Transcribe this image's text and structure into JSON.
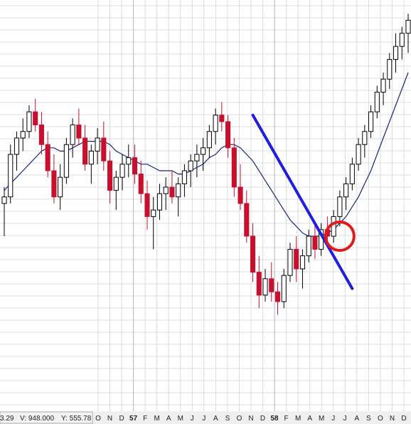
{
  "readout": {
    "date_fragment": "3.29",
    "volume": "V: 948.000",
    "price": "Y: 555.78"
  },
  "colors": {
    "up_candle": "#000000",
    "down_candle": "#c8102e",
    "moving_average": "#1a237e",
    "trendline": "#1f1fdc",
    "circle": "#e01a1a",
    "grid": "#dcdcdc",
    "axis_bg": "#efefef"
  },
  "chart_data": {
    "type": "candlestick",
    "title": "",
    "xlabel": "",
    "ylabel": "",
    "grid": true,
    "x_labels": [
      "O",
      "N",
      "D",
      "57",
      "F",
      "M",
      "A",
      "M",
      "J",
      "J",
      "A",
      "S",
      "O",
      "N",
      "D",
      "58",
      "F",
      "M",
      "A",
      "M",
      "J",
      "J",
      "A",
      "S",
      "O",
      "N",
      "D"
    ],
    "year_labels": [
      "57",
      "58"
    ],
    "ylim": [
      0,
      100
    ],
    "series": [
      {
        "kind": "candles",
        "values": [
          [
            40,
            45,
            30,
            42
          ],
          [
            42,
            58,
            40,
            55
          ],
          [
            55,
            62,
            50,
            60
          ],
          [
            60,
            66,
            56,
            62
          ],
          [
            62,
            70,
            60,
            68
          ],
          [
            68,
            72,
            62,
            64
          ],
          [
            64,
            68,
            55,
            58
          ],
          [
            58,
            62,
            48,
            50
          ],
          [
            50,
            55,
            40,
            42
          ],
          [
            42,
            52,
            38,
            48
          ],
          [
            48,
            60,
            46,
            58
          ],
          [
            58,
            66,
            54,
            64
          ],
          [
            64,
            69,
            58,
            60
          ],
          [
            60,
            64,
            50,
            52
          ],
          [
            52,
            58,
            46,
            56
          ],
          [
            56,
            63,
            52,
            60
          ],
          [
            60,
            65,
            50,
            53
          ],
          [
            53,
            56,
            40,
            44
          ],
          [
            44,
            50,
            38,
            48
          ],
          [
            48,
            55,
            44,
            52
          ],
          [
            52,
            58,
            48,
            54
          ],
          [
            54,
            58,
            46,
            49
          ],
          [
            49,
            53,
            40,
            43
          ],
          [
            43,
            47,
            32,
            36
          ],
          [
            36,
            42,
            26,
            38
          ],
          [
            38,
            46,
            35,
            43
          ],
          [
            43,
            48,
            38,
            45
          ],
          [
            45,
            50,
            40,
            42
          ],
          [
            42,
            48,
            36,
            46
          ],
          [
            46,
            52,
            42,
            50
          ],
          [
            50,
            55,
            45,
            53
          ],
          [
            53,
            58,
            48,
            55
          ],
          [
            55,
            60,
            50,
            57
          ],
          [
            57,
            64,
            54,
            62
          ],
          [
            62,
            69,
            58,
            67
          ],
          [
            67,
            71,
            62,
            65
          ],
          [
            65,
            67,
            54,
            57
          ],
          [
            57,
            60,
            42,
            45
          ],
          [
            45,
            52,
            38,
            40
          ],
          [
            40,
            44,
            28,
            30
          ],
          [
            30,
            34,
            16,
            19
          ],
          [
            19,
            24,
            8,
            12
          ],
          [
            12,
            20,
            10,
            17
          ],
          [
            17,
            22,
            10,
            13
          ],
          [
            13,
            16,
            6,
            10
          ],
          [
            10,
            20,
            8,
            18
          ],
          [
            18,
            28,
            16,
            26
          ],
          [
            26,
            30,
            16,
            20
          ],
          [
            20,
            26,
            14,
            24
          ],
          [
            24,
            32,
            22,
            30
          ],
          [
            30,
            34,
            23,
            26
          ],
          [
            26,
            34,
            24,
            32
          ],
          [
            32,
            36,
            27,
            30
          ],
          [
            30,
            38,
            28,
            36
          ],
          [
            36,
            44,
            33,
            42
          ],
          [
            42,
            48,
            38,
            46
          ],
          [
            46,
            54,
            44,
            52
          ],
          [
            52,
            60,
            50,
            58
          ],
          [
            58,
            64,
            54,
            62
          ],
          [
            62,
            70,
            60,
            68
          ],
          [
            68,
            76,
            66,
            74
          ],
          [
            74,
            80,
            70,
            78
          ],
          [
            78,
            86,
            75,
            84
          ],
          [
            84,
            92,
            80,
            88
          ],
          [
            88,
            94,
            84,
            92
          ],
          [
            92,
            98,
            86,
            96
          ]
        ]
      },
      {
        "kind": "line",
        "name": "",
        "values": [
          44,
          46,
          48,
          50,
          52,
          54,
          56,
          57,
          57,
          56,
          56,
          57,
          58,
          59,
          59,
          59,
          59,
          58,
          56,
          55,
          54,
          53,
          52,
          52,
          51,
          50,
          50,
          50,
          49,
          49,
          50,
          51,
          52,
          54,
          55,
          57,
          58,
          58,
          57,
          55,
          53,
          50,
          47,
          44,
          41,
          38,
          35,
          33,
          31,
          30,
          30,
          30,
          31,
          32,
          34,
          36,
          39,
          42,
          46,
          50,
          55,
          60,
          65,
          70,
          75,
          80
        ]
      }
    ],
    "annotations": [
      {
        "kind": "trendline",
        "from_index": 40,
        "from_value": 67,
        "to_index": 56,
        "to_value": 14
      },
      {
        "kind": "circle",
        "index": 54,
        "value": 30
      }
    ]
  }
}
